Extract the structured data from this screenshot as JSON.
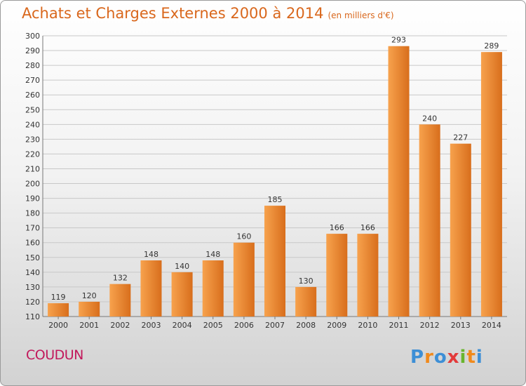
{
  "title": "Achats et Charges Externes 2000 à 2014",
  "unit_note": "(en milliers d'€)",
  "commune": "COUDUN",
  "logo_text": "Proxiti",
  "colors": {
    "bar_light": "#f7a24d",
    "bar_dark": "#d86e1c",
    "title": "#d9671c",
    "commune": "#c2185b",
    "grid": "#c8c8c8"
  },
  "chart_data": {
    "type": "bar",
    "title": "Achats et Charges Externes 2000 à 2014",
    "subtitle": "(en milliers d'€)",
    "categories": [
      "2000",
      "2001",
      "2002",
      "2003",
      "2004",
      "2005",
      "2006",
      "2007",
      "2008",
      "2009",
      "2010",
      "2011",
      "2012",
      "2013",
      "2014"
    ],
    "values": [
      119,
      120,
      132,
      148,
      140,
      148,
      160,
      185,
      130,
      166,
      166,
      293,
      240,
      227,
      289
    ],
    "ylim": [
      110,
      300
    ],
    "ytick_step": 10,
    "grid": true,
    "data_labels": true
  }
}
